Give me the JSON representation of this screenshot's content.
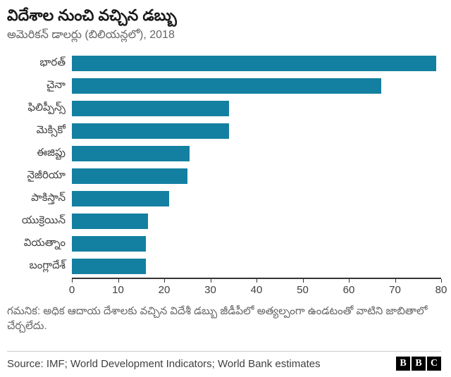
{
  "title": "విదేశాల నుంచి వచ్చిన డబ్బు",
  "subtitle": "అమెరికన్ డాలర్లు (బిలియన్లలో), 2018",
  "chart_data": {
    "type": "bar",
    "orientation": "horizontal",
    "title": "విదేశాల నుంచి వచ్చిన డబ్బు",
    "subtitle": "అమెరికన్ డాలర్లు (బిలియన్లలో), 2018",
    "categories": [
      "భారత్",
      "చైనా",
      "ఫిలిప్పీన్స్",
      "మెక్సికో",
      "ఈజిప్టు",
      "నైజీరియా",
      "పాకిస్తాన్",
      "యుక్రెయిన్",
      "వియత్నాం",
      "బంగ్లాదేశ్"
    ],
    "values": [
      79,
      67,
      34,
      34,
      25.5,
      25,
      21,
      16.5,
      16,
      16
    ],
    "xlabel": "",
    "ylabel": "",
    "xlim": [
      0,
      80
    ],
    "x_ticks": [
      0,
      10,
      20,
      30,
      40,
      50,
      60,
      70,
      80
    ],
    "bar_color": "#1380A1",
    "grid": false,
    "legend": false
  },
  "footnote": "గమనిక: అధిక ఆదాయ దేశాలకు వచ్చిన విదేశీ డబ్బు జీడీపీలో అత్యల్పంగా ఉండటంతో వాటిని జాబితాలో చేర్చలేదు.",
  "source": "Source: IMF; World Development Indicators; World Bank estimates",
  "logo": {
    "letters": [
      "B",
      "B",
      "C"
    ]
  }
}
